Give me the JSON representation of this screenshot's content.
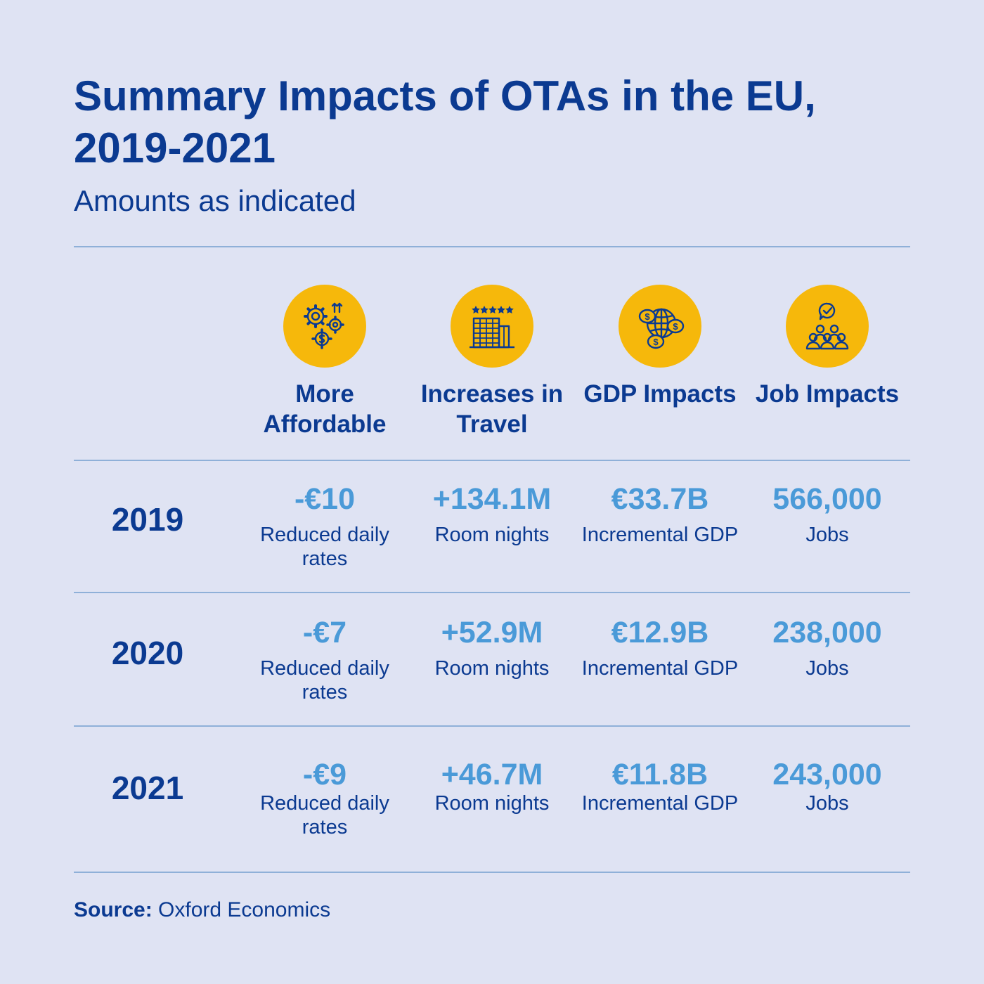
{
  "title": "Summary Impacts of OTAs in the EU, 2019-2021",
  "subtitle": "Amounts as indicated",
  "colors": {
    "background": "#dfe3f3",
    "heading": "#0b3a91",
    "value": "#4a9ad8",
    "icon_bg": "#f6b80b",
    "rule": "#8fb0d8"
  },
  "chart_data": {
    "type": "table",
    "title": "Summary Impacts of OTAs in the EU, 2019-2021",
    "subtitle": "Amounts as indicated",
    "columns": [
      {
        "key": "affordable",
        "label": "More Affordable",
        "icon": "gears-dollar-icon"
      },
      {
        "key": "travel",
        "label": "Increases in Travel",
        "icon": "hotel-building-icon"
      },
      {
        "key": "gdp",
        "label": "GDP Impacts",
        "icon": "globe-money-icon"
      },
      {
        "key": "jobs",
        "label": "Job Impacts",
        "icon": "people-group-icon"
      }
    ],
    "rows": [
      {
        "year": "2019",
        "cells": [
          {
            "value": "-€10",
            "desc": "Reduced daily rates",
            "numeric": -10,
            "unit": "EUR"
          },
          {
            "value": "+134.1M",
            "desc": "Room nights",
            "numeric": 134.1,
            "unit": "million room nights"
          },
          {
            "value": "€33.7B",
            "desc": "Incremental GDP",
            "numeric": 33.7,
            "unit": "billion EUR"
          },
          {
            "value": "566,000",
            "desc": "Jobs",
            "numeric": 566000,
            "unit": "jobs"
          }
        ]
      },
      {
        "year": "2020",
        "cells": [
          {
            "value": "-€7",
            "desc": "Reduced daily rates",
            "numeric": -7,
            "unit": "EUR"
          },
          {
            "value": "+52.9M",
            "desc": "Room nights",
            "numeric": 52.9,
            "unit": "million room nights"
          },
          {
            "value": "€12.9B",
            "desc": "Incremental GDP",
            "numeric": 12.9,
            "unit": "billion EUR"
          },
          {
            "value": "238,000",
            "desc": "Jobs",
            "numeric": 238000,
            "unit": "jobs"
          }
        ]
      },
      {
        "year": "2021",
        "cells": [
          {
            "value": "-€9",
            "desc": "Reduced daily rates",
            "numeric": -9,
            "unit": "EUR"
          },
          {
            "value": "+46.7M",
            "desc": "Room nights",
            "numeric": 46.7,
            "unit": "million room nights"
          },
          {
            "value": "€11.8B",
            "desc": "Incremental GDP",
            "numeric": 11.8,
            "unit": "billion EUR"
          },
          {
            "value": "243,000",
            "desc": "Jobs",
            "numeric": 243000,
            "unit": "jobs"
          }
        ]
      }
    ]
  },
  "source": {
    "label": "Source:",
    "text": "Oxford Economics"
  }
}
